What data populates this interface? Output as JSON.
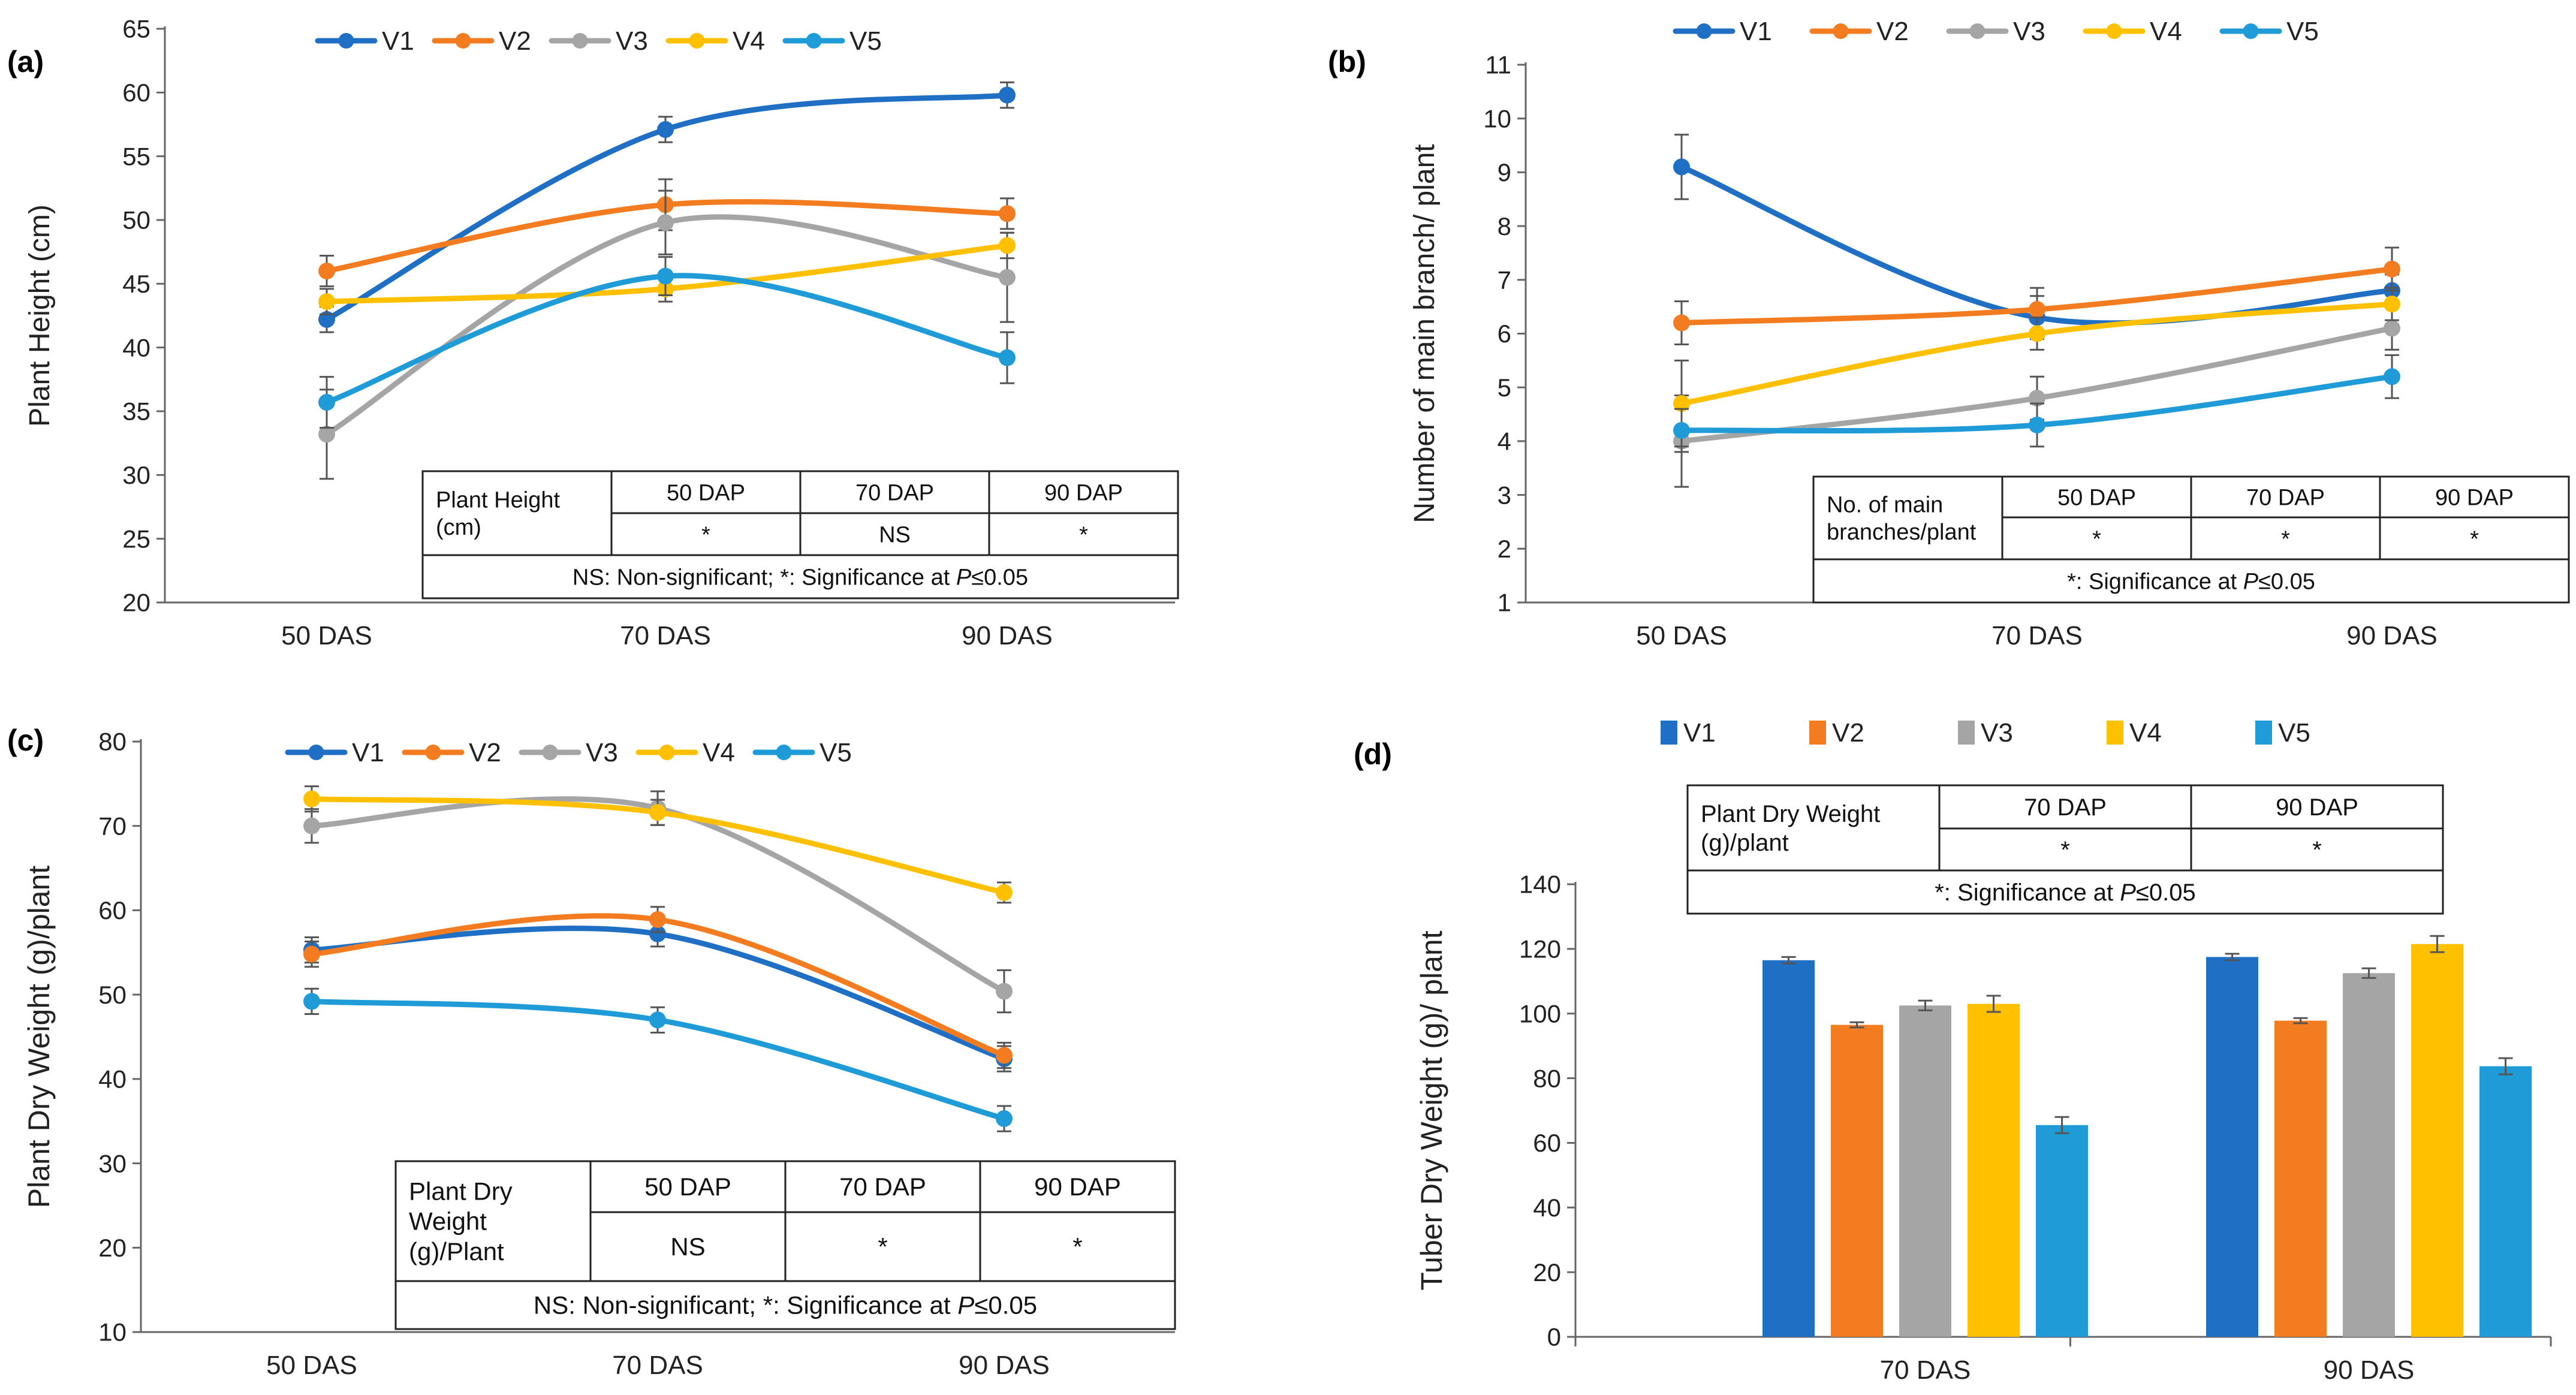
{
  "series_colors": {
    "V1": "#1F6FC5",
    "V2": "#F47C20",
    "V3": "#A5A5A5",
    "V4": "#FFC000",
    "V5": "#1F9BD7"
  },
  "chart_data": [
    {
      "panel": "(a)",
      "type": "line",
      "categories": [
        "50 DAS",
        "70 DAS",
        "90 DAS"
      ],
      "ylabel": "Plant Height (cm)",
      "ylim": [
        20,
        65
      ],
      "yticks": [
        20,
        25,
        30,
        35,
        40,
        45,
        50,
        55,
        60,
        65
      ],
      "legend": "top",
      "series": [
        {
          "name": "V1",
          "values": [
            42.2,
            57.1,
            59.8
          ],
          "errors": [
            1.0,
            1.0,
            1.0
          ]
        },
        {
          "name": "V2",
          "values": [
            46.0,
            51.2,
            50.5
          ],
          "errors": [
            1.2,
            2.0,
            1.2
          ]
        },
        {
          "name": "V3",
          "values": [
            33.2,
            49.8,
            45.5
          ],
          "errors": [
            3.5,
            2.5,
            3.5
          ]
        },
        {
          "name": "V4",
          "values": [
            43.6,
            44.6,
            48.0
          ],
          "errors": [
            1.0,
            1.0,
            1.0
          ]
        },
        {
          "name": "V5",
          "values": [
            35.7,
            45.6,
            39.2
          ],
          "errors": [
            2.0,
            1.5,
            2.0
          ]
        }
      ],
      "table": {
        "corner": [
          "Plant Height",
          "(cm)"
        ],
        "headers": [
          "50 DAP",
          "70 DAP",
          "90 DAP"
        ],
        "values": [
          "*",
          "NS",
          "*"
        ],
        "note": "NS: Non-significant; *: Significance at ",
        "note_p": "P",
        "note_tail": "≤0.05"
      }
    },
    {
      "panel": "(b)",
      "type": "line",
      "categories": [
        "50 DAS",
        "70 DAS",
        "90 DAS"
      ],
      "ylabel": "Number of main branch/ plant",
      "ylim": [
        1,
        11
      ],
      "yticks": [
        1,
        2,
        3,
        4,
        5,
        6,
        7,
        8,
        9,
        10,
        11
      ],
      "legend": "top",
      "series": [
        {
          "name": "V1",
          "values": [
            9.1,
            6.3,
            6.8
          ],
          "errors": [
            0.6,
            0.4,
            0.3
          ]
        },
        {
          "name": "V2",
          "values": [
            6.2,
            6.45,
            7.2
          ],
          "errors": [
            0.4,
            0.4,
            0.4
          ]
        },
        {
          "name": "V3",
          "values": [
            4.0,
            4.8,
            6.1
          ],
          "errors": [
            0.85,
            0.4,
            0.4
          ]
        },
        {
          "name": "V4",
          "values": [
            4.7,
            6.0,
            6.55
          ],
          "errors": [
            0.8,
            0.3,
            0.3
          ]
        },
        {
          "name": "V5",
          "values": [
            4.2,
            4.3,
            5.2
          ],
          "errors": [
            0.4,
            0.4,
            0.4
          ]
        }
      ],
      "table": {
        "corner": [
          "No. of main",
          "branches/plant"
        ],
        "headers": [
          "50 DAP",
          "70 DAP",
          "90 DAP"
        ],
        "values": [
          "*",
          "*",
          "*"
        ],
        "note": "*: Significance at ",
        "note_p": "P",
        "note_tail": "≤0.05"
      }
    },
    {
      "panel": "(c)",
      "type": "line",
      "categories": [
        "50 DAS",
        "70 DAS",
        "90 DAS"
      ],
      "ylabel": "Plant Dry Weight (g)/plant",
      "ylim": [
        10,
        80
      ],
      "yticks": [
        10,
        20,
        30,
        40,
        50,
        60,
        70,
        80
      ],
      "legend": "top",
      "series": [
        {
          "name": "V1",
          "values": [
            55.3,
            57.2,
            42.4
          ],
          "errors": [
            1.5,
            1.5,
            1.5
          ]
        },
        {
          "name": "V2",
          "values": [
            54.8,
            58.9,
            42.8
          ],
          "errors": [
            1.5,
            1.5,
            1.5
          ]
        },
        {
          "name": "V3",
          "values": [
            70.0,
            72.1,
            50.4
          ],
          "errors": [
            2.0,
            2.0,
            2.5
          ]
        },
        {
          "name": "V4",
          "values": [
            73.2,
            71.6,
            62.1
          ],
          "errors": [
            1.5,
            1.5,
            1.2
          ]
        },
        {
          "name": "V5",
          "values": [
            49.2,
            47.0,
            35.3
          ],
          "errors": [
            1.5,
            1.5,
            1.5
          ]
        }
      ],
      "table": {
        "corner": [
          "Plant Dry",
          "Weight",
          "(g)/Plant"
        ],
        "headers": [
          "50 DAP",
          "70 DAP",
          "90 DAP"
        ],
        "values": [
          "NS",
          "*",
          "*"
        ],
        "note": "NS: Non-significant; *: Significance at ",
        "note_p": "P",
        "note_tail": "≤0.05"
      }
    },
    {
      "panel": "(d)",
      "type": "bar",
      "categories": [
        "70 DAS",
        "90 DAS"
      ],
      "ylabel": "Tuber Dry Weight (g)/ plant",
      "ylim": [
        0,
        140
      ],
      "yticks": [
        0,
        20,
        40,
        60,
        80,
        100,
        120,
        140
      ],
      "legend": "top",
      "series": [
        {
          "name": "V1",
          "values": [
            116.5,
            117.5
          ],
          "errors": [
            1.0,
            1.0
          ]
        },
        {
          "name": "V2",
          "values": [
            96.5,
            97.8
          ],
          "errors": [
            0.8,
            0.8
          ]
        },
        {
          "name": "V3",
          "values": [
            102.5,
            112.5
          ],
          "errors": [
            1.5,
            1.5
          ]
        },
        {
          "name": "V4",
          "values": [
            103.0,
            121.5
          ],
          "errors": [
            2.5,
            2.5
          ]
        },
        {
          "name": "V5",
          "values": [
            65.5,
            83.7
          ],
          "errors": [
            2.5,
            2.5
          ]
        }
      ],
      "table": {
        "corner": [
          "Plant Dry Weight",
          "(g)/plant"
        ],
        "headers": [
          "70 DAP",
          "90 DAP"
        ],
        "values": [
          "*",
          "*"
        ],
        "note": "*: Significance at ",
        "note_p": "P",
        "note_tail": "≤0.05"
      }
    }
  ]
}
